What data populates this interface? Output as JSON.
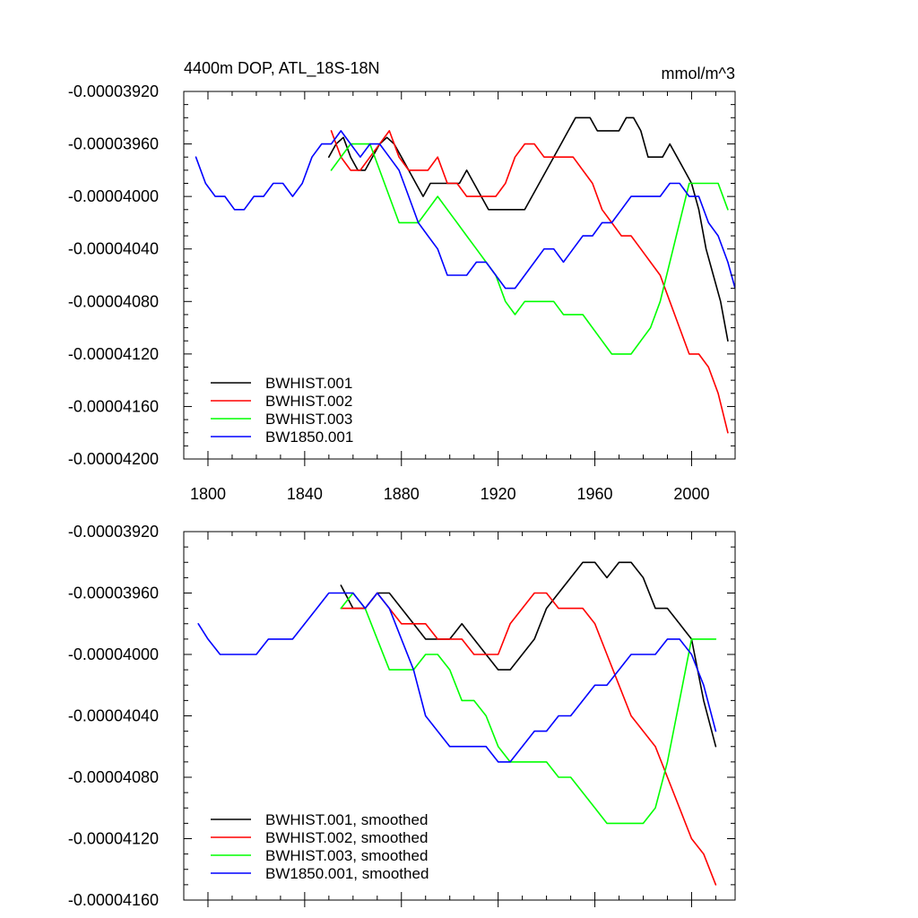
{
  "chart_data": [
    {
      "type": "line",
      "title_left": "4400m DOP, ATL_18S-18N",
      "title_right": "mmol/m^3",
      "xlim": [
        1790,
        2018
      ],
      "ylim": [
        -4.2e-05,
        -3.92e-05
      ],
      "x_ticks": [
        1800,
        1840,
        1880,
        1920,
        1960,
        2000
      ],
      "x_tick_labels": [
        "1800",
        "1840",
        "1880",
        "1920",
        "1960",
        "2000"
      ],
      "y_ticks": [
        -3.92e-05,
        -3.96e-05,
        -4e-05,
        -4.04e-05,
        -4.08e-05,
        -4.12e-05,
        -4.16e-05,
        -4.2e-05
      ],
      "y_tick_labels": [
        "-0.00003920",
        "-0.00003960",
        "-0.00004000",
        "-0.00004040",
        "-0.00004080",
        "-0.00004120",
        "-0.00004160",
        "-0.00004200"
      ],
      "series": [
        {
          "name": "BWHIST.001",
          "color": "#000000",
          "x": [
            1850,
            1853,
            1856,
            1859,
            1862,
            1865,
            1868,
            1871,
            1874,
            1877,
            1880,
            1883,
            1886,
            1889,
            1892,
            1895,
            1898,
            1901,
            1904,
            1907,
            1910,
            1913,
            1916,
            1919,
            1922,
            1925,
            1928,
            1931,
            1934,
            1937,
            1940,
            1943,
            1946,
            1949,
            1952,
            1955,
            1958,
            1961,
            1964,
            1967,
            1970,
            1973,
            1976,
            1979,
            1982,
            1985,
            1988,
            1991,
            1994,
            1997,
            2000,
            2003,
            2006,
            2009,
            2012,
            2015
          ],
          "y": [
            -3.97e-05,
            -3.96e-05,
            -3.955e-05,
            -3.97e-05,
            -3.98e-05,
            -3.98e-05,
            -3.97e-05,
            -3.96e-05,
            -3.955e-05,
            -3.96e-05,
            -3.97e-05,
            -3.98e-05,
            -3.99e-05,
            -4e-05,
            -3.99e-05,
            -3.99e-05,
            -3.99e-05,
            -3.99e-05,
            -3.99e-05,
            -3.98e-05,
            -3.99e-05,
            -4e-05,
            -4.01e-05,
            -4.01e-05,
            -4.01e-05,
            -4.01e-05,
            -4.01e-05,
            -4.01e-05,
            -4e-05,
            -3.99e-05,
            -3.98e-05,
            -3.97e-05,
            -3.96e-05,
            -3.95e-05,
            -3.94e-05,
            -3.94e-05,
            -3.94e-05,
            -3.95e-05,
            -3.95e-05,
            -3.95e-05,
            -3.95e-05,
            -3.94e-05,
            -3.94e-05,
            -3.95e-05,
            -3.97e-05,
            -3.97e-05,
            -3.97e-05,
            -3.96e-05,
            -3.97e-05,
            -3.98e-05,
            -3.99e-05,
            -4.01e-05,
            -4.04e-05,
            -4.06e-05,
            -4.08e-05,
            -4.11e-05
          ]
        },
        {
          "name": "BWHIST.002",
          "color": "#ff0000",
          "x": [
            1851,
            1855,
            1859,
            1863,
            1867,
            1871,
            1875,
            1879,
            1883,
            1887,
            1891,
            1895,
            1899,
            1903,
            1907,
            1911,
            1915,
            1919,
            1923,
            1927,
            1931,
            1935,
            1939,
            1943,
            1947,
            1951,
            1955,
            1959,
            1963,
            1967,
            1971,
            1975,
            1979,
            1983,
            1987,
            1991,
            1995,
            1999,
            2003,
            2007,
            2011,
            2015
          ],
          "y": [
            -3.95e-05,
            -3.97e-05,
            -3.98e-05,
            -3.98e-05,
            -3.97e-05,
            -3.96e-05,
            -3.95e-05,
            -3.97e-05,
            -3.98e-05,
            -3.98e-05,
            -3.98e-05,
            -3.97e-05,
            -3.99e-05,
            -3.99e-05,
            -4e-05,
            -4e-05,
            -4e-05,
            -4e-05,
            -3.99e-05,
            -3.97e-05,
            -3.96e-05,
            -3.96e-05,
            -3.97e-05,
            -3.97e-05,
            -3.97e-05,
            -3.97e-05,
            -3.98e-05,
            -3.99e-05,
            -4.01e-05,
            -4.02e-05,
            -4.03e-05,
            -4.03e-05,
            -4.04e-05,
            -4.05e-05,
            -4.06e-05,
            -4.08e-05,
            -4.1e-05,
            -4.12e-05,
            -4.12e-05,
            -4.13e-05,
            -4.15e-05,
            -4.18e-05
          ]
        },
        {
          "name": "BWHIST.003",
          "color": "#00ff00",
          "x": [
            1851,
            1855,
            1859,
            1863,
            1867,
            1871,
            1875,
            1879,
            1883,
            1887,
            1891,
            1895,
            1899,
            1903,
            1907,
            1911,
            1915,
            1919,
            1923,
            1927,
            1931,
            1935,
            1939,
            1943,
            1947,
            1951,
            1955,
            1959,
            1963,
            1967,
            1971,
            1975,
            1979,
            1983,
            1987,
            1991,
            1995,
            1999,
            2003,
            2007,
            2011,
            2015
          ],
          "y": [
            -3.98e-05,
            -3.97e-05,
            -3.96e-05,
            -3.96e-05,
            -3.96e-05,
            -3.98e-05,
            -4e-05,
            -4.02e-05,
            -4.02e-05,
            -4.02e-05,
            -4.01e-05,
            -4e-05,
            -4.01e-05,
            -4.02e-05,
            -4.03e-05,
            -4.04e-05,
            -4.05e-05,
            -4.06e-05,
            -4.08e-05,
            -4.09e-05,
            -4.08e-05,
            -4.08e-05,
            -4.08e-05,
            -4.08e-05,
            -4.09e-05,
            -4.09e-05,
            -4.09e-05,
            -4.1e-05,
            -4.11e-05,
            -4.12e-05,
            -4.12e-05,
            -4.12e-05,
            -4.11e-05,
            -4.1e-05,
            -4.08e-05,
            -4.05e-05,
            -4.02e-05,
            -3.99e-05,
            -3.99e-05,
            -3.99e-05,
            -3.99e-05,
            -4.01e-05
          ]
        },
        {
          "name": "BW1850.001",
          "color": "#0000ff",
          "x": [
            1795,
            1799,
            1803,
            1807,
            1811,
            1815,
            1819,
            1823,
            1827,
            1831,
            1835,
            1839,
            1843,
            1847,
            1851,
            1855,
            1859,
            1863,
            1867,
            1871,
            1875,
            1879,
            1883,
            1887,
            1891,
            1895,
            1899,
            1903,
            1907,
            1911,
            1915,
            1919,
            1923,
            1927,
            1931,
            1935,
            1939,
            1943,
            1947,
            1951,
            1955,
            1959,
            1963,
            1967,
            1971,
            1975,
            1979,
            1983,
            1987,
            1991,
            1995,
            1999,
            2003,
            2007,
            2011,
            2015,
            2018
          ],
          "y": [
            -3.97e-05,
            -3.99e-05,
            -4e-05,
            -4e-05,
            -4.01e-05,
            -4.01e-05,
            -4e-05,
            -4e-05,
            -3.99e-05,
            -3.99e-05,
            -4e-05,
            -3.99e-05,
            -3.97e-05,
            -3.96e-05,
            -3.96e-05,
            -3.95e-05,
            -3.96e-05,
            -3.97e-05,
            -3.96e-05,
            -3.96e-05,
            -3.97e-05,
            -3.98e-05,
            -4e-05,
            -4.02e-05,
            -4.03e-05,
            -4.04e-05,
            -4.06e-05,
            -4.06e-05,
            -4.06e-05,
            -4.05e-05,
            -4.05e-05,
            -4.06e-05,
            -4.07e-05,
            -4.07e-05,
            -4.06e-05,
            -4.05e-05,
            -4.04e-05,
            -4.04e-05,
            -4.05e-05,
            -4.04e-05,
            -4.03e-05,
            -4.03e-05,
            -4.02e-05,
            -4.02e-05,
            -4.01e-05,
            -4e-05,
            -4e-05,
            -4e-05,
            -4e-05,
            -3.99e-05,
            -3.99e-05,
            -4e-05,
            -4e-05,
            -4.02e-05,
            -4.03e-05,
            -4.05e-05,
            -4.07e-05
          ]
        }
      ]
    },
    {
      "type": "line",
      "xlim": [
        1790,
        2018
      ],
      "ylim": [
        -4.16e-05,
        -3.92e-05
      ],
      "x_ticks": [
        1800,
        1840,
        1880,
        1920,
        1960,
        2000
      ],
      "y_ticks": [
        -3.92e-05,
        -3.96e-05,
        -4e-05,
        -4.04e-05,
        -4.08e-05,
        -4.12e-05,
        -4.16e-05
      ],
      "y_tick_labels": [
        "-0.00003920",
        "-0.00003960",
        "-0.00004000",
        "-0.00004040",
        "-0.00004080",
        "-0.00004120",
        "-0.00004160"
      ],
      "series": [
        {
          "name": "BWHIST.001, smoothed",
          "color": "#000000",
          "x": [
            1855,
            1860,
            1865,
            1870,
            1875,
            1880,
            1885,
            1890,
            1895,
            1900,
            1905,
            1910,
            1915,
            1920,
            1925,
            1930,
            1935,
            1940,
            1945,
            1950,
            1955,
            1960,
            1965,
            1970,
            1975,
            1980,
            1985,
            1990,
            1995,
            2000,
            2005,
            2010
          ],
          "y": [
            -3.955e-05,
            -3.97e-05,
            -3.97e-05,
            -3.96e-05,
            -3.96e-05,
            -3.97e-05,
            -3.98e-05,
            -3.99e-05,
            -3.99e-05,
            -3.99e-05,
            -3.98e-05,
            -3.99e-05,
            -4e-05,
            -4.01e-05,
            -4.01e-05,
            -4e-05,
            -3.99e-05,
            -3.97e-05,
            -3.96e-05,
            -3.95e-05,
            -3.94e-05,
            -3.94e-05,
            -3.95e-05,
            -3.94e-05,
            -3.94e-05,
            -3.95e-05,
            -3.97e-05,
            -3.97e-05,
            -3.98e-05,
            -3.99e-05,
            -4.03e-05,
            -4.06e-05
          ]
        },
        {
          "name": "BWHIST.002, smoothed",
          "color": "#ff0000",
          "x": [
            1855,
            1860,
            1865,
            1870,
            1875,
            1880,
            1885,
            1890,
            1895,
            1900,
            1905,
            1910,
            1915,
            1920,
            1925,
            1930,
            1935,
            1940,
            1945,
            1950,
            1955,
            1960,
            1965,
            1970,
            1975,
            1980,
            1985,
            1990,
            1995,
            2000,
            2005,
            2010
          ],
          "y": [
            -3.97e-05,
            -3.97e-05,
            -3.97e-05,
            -3.96e-05,
            -3.97e-05,
            -3.98e-05,
            -3.98e-05,
            -3.98e-05,
            -3.99e-05,
            -3.99e-05,
            -3.99e-05,
            -4e-05,
            -4e-05,
            -4e-05,
            -3.98e-05,
            -3.97e-05,
            -3.96e-05,
            -3.96e-05,
            -3.97e-05,
            -3.97e-05,
            -3.97e-05,
            -3.98e-05,
            -4e-05,
            -4.02e-05,
            -4.04e-05,
            -4.05e-05,
            -4.06e-05,
            -4.08e-05,
            -4.1e-05,
            -4.12e-05,
            -4.13e-05,
            -4.15e-05
          ]
        },
        {
          "name": "BWHIST.003, smoothed",
          "color": "#00ff00",
          "x": [
            1855,
            1860,
            1865,
            1870,
            1875,
            1880,
            1885,
            1890,
            1895,
            1900,
            1905,
            1910,
            1915,
            1920,
            1925,
            1930,
            1935,
            1940,
            1945,
            1950,
            1955,
            1960,
            1965,
            1970,
            1975,
            1980,
            1985,
            1990,
            1995,
            2000,
            2005,
            2010
          ],
          "y": [
            -3.97e-05,
            -3.96e-05,
            -3.97e-05,
            -3.99e-05,
            -4.01e-05,
            -4.01e-05,
            -4.01e-05,
            -4e-05,
            -4e-05,
            -4.01e-05,
            -4.03e-05,
            -4.03e-05,
            -4.04e-05,
            -4.06e-05,
            -4.07e-05,
            -4.07e-05,
            -4.07e-05,
            -4.07e-05,
            -4.08e-05,
            -4.08e-05,
            -4.09e-05,
            -4.1e-05,
            -4.11e-05,
            -4.11e-05,
            -4.11e-05,
            -4.11e-05,
            -4.1e-05,
            -4.07e-05,
            -4.03e-05,
            -3.99e-05,
            -3.99e-05,
            -3.99e-05
          ]
        },
        {
          "name": "BW1850.001, smoothed",
          "color": "#0000ff",
          "x": [
            1796,
            1800,
            1805,
            1810,
            1815,
            1820,
            1825,
            1830,
            1835,
            1840,
            1845,
            1850,
            1855,
            1860,
            1865,
            1870,
            1875,
            1880,
            1885,
            1890,
            1895,
            1900,
            1905,
            1910,
            1915,
            1920,
            1925,
            1930,
            1935,
            1940,
            1945,
            1950,
            1955,
            1960,
            1965,
            1970,
            1975,
            1980,
            1985,
            1990,
            1995,
            2000,
            2005,
            2010
          ],
          "y": [
            -3.98e-05,
            -3.99e-05,
            -4e-05,
            -4e-05,
            -4e-05,
            -4e-05,
            -3.99e-05,
            -3.99e-05,
            -3.99e-05,
            -3.98e-05,
            -3.97e-05,
            -3.96e-05,
            -3.96e-05,
            -3.96e-05,
            -3.97e-05,
            -3.96e-05,
            -3.97e-05,
            -3.99e-05,
            -4.01e-05,
            -4.04e-05,
            -4.05e-05,
            -4.06e-05,
            -4.06e-05,
            -4.06e-05,
            -4.06e-05,
            -4.07e-05,
            -4.07e-05,
            -4.06e-05,
            -4.05e-05,
            -4.05e-05,
            -4.04e-05,
            -4.04e-05,
            -4.03e-05,
            -4.02e-05,
            -4.02e-05,
            -4.01e-05,
            -4e-05,
            -4e-05,
            -4e-05,
            -3.99e-05,
            -3.99e-05,
            -4e-05,
            -4.02e-05,
            -4.05e-05
          ]
        }
      ]
    }
  ]
}
